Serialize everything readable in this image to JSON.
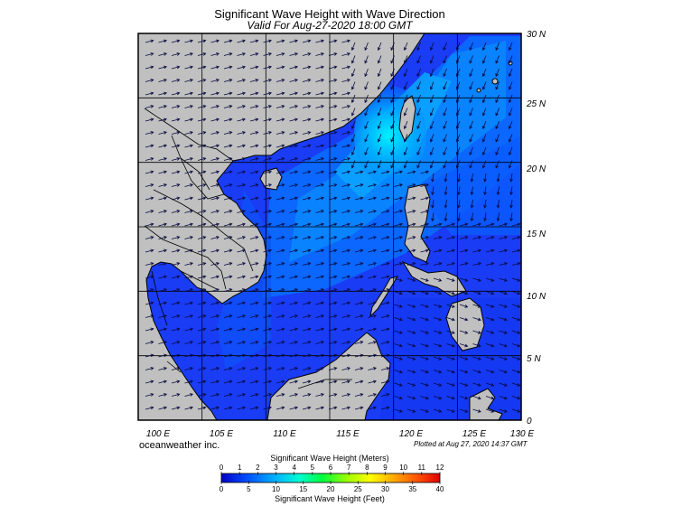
{
  "title": "Significant Wave Height with Wave Direction",
  "subtitle": "Valid For Aug-27-2020 18:00 GMT",
  "credit_left": "oceanweather inc.",
  "credit_right": "Plotted at Aug 27, 2020 14:37 GMT",
  "map": {
    "lon_range": [
      100,
      130
    ],
    "lat_range": [
      0,
      30
    ],
    "lon_labels": [
      "100 E",
      "105 E",
      "110 E",
      "115 E",
      "120 E",
      "125 E",
      "130 E"
    ],
    "lat_labels": [
      "30 N",
      "25 N",
      "20 N",
      "15 N",
      "10 N",
      "5 N",
      "0"
    ],
    "grid_step_deg": 5,
    "colors": {
      "land": "#c0c0c0",
      "deep_sea": "#1a3cf5",
      "coast": "#000000",
      "arrows": "#0a0a40"
    }
  },
  "colorbar": {
    "title_top": "Significant Wave Height (Meters)",
    "title_bottom": "Significant Wave Height (Feet)",
    "meter_labels": [
      "0",
      "1",
      "2",
      "3",
      "4",
      "5",
      "6",
      "7",
      "8",
      "9",
      "10",
      "11",
      "12"
    ],
    "feet_labels": [
      "0",
      "5",
      "10",
      "15",
      "20",
      "25",
      "30",
      "35",
      "40"
    ],
    "colors": [
      "#0000c8",
      "#0050ff",
      "#00b4ff",
      "#00ffd0",
      "#00ff40",
      "#a0ff00",
      "#ffff00",
      "#ffb000",
      "#ff5000",
      "#e00000"
    ]
  }
}
